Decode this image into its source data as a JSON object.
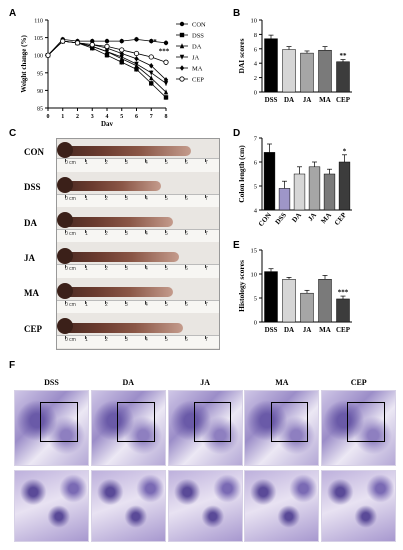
{
  "panels": {
    "A": "A",
    "B": "B",
    "C": "C",
    "D": "D",
    "E": "E",
    "F": "F"
  },
  "chart_data": [
    {
      "id": "A",
      "type": "line",
      "xlabel": "Day",
      "ylabel": "Weight change (%)",
      "ylim": [
        85,
        110
      ],
      "xlim": [
        0,
        8
      ],
      "x": [
        0,
        1,
        2,
        3,
        4,
        5,
        6,
        7,
        8
      ],
      "yticks": [
        85,
        90,
        95,
        100,
        105,
        110
      ],
      "series": [
        {
          "name": "CON",
          "marker": "filled-circle",
          "values": [
            100,
            104.5,
            104,
            104,
            104,
            104,
            104.5,
            104,
            103.5
          ]
        },
        {
          "name": "DSS",
          "marker": "filled-square",
          "values": [
            100,
            104,
            103.5,
            102,
            100,
            98,
            96,
            92,
            88
          ]
        },
        {
          "name": "DA",
          "marker": "filled-triangle",
          "values": [
            100,
            104,
            103.5,
            102.5,
            101,
            99,
            97,
            93.5,
            89.5
          ]
        },
        {
          "name": "JA",
          "marker": "inverted-triangle",
          "values": [
            100,
            104,
            103.5,
            102.5,
            101,
            99.5,
            97.5,
            95,
            92
          ]
        },
        {
          "name": "MA",
          "marker": "diamond",
          "values": [
            100,
            104,
            103.5,
            103,
            102,
            100.5,
            99,
            97,
            93
          ]
        },
        {
          "name": "CEP",
          "marker": "open-circle",
          "values": [
            100,
            104,
            103.5,
            103,
            102.5,
            101.5,
            100.5,
            99.5,
            98
          ]
        }
      ],
      "annotations": [
        "**",
        "***"
      ]
    },
    {
      "id": "B",
      "type": "bar",
      "ylabel": "DAI scores",
      "categories": [
        "DSS",
        "DA",
        "JA",
        "MA",
        "CEP"
      ],
      "values": [
        7.4,
        5.9,
        5.4,
        5.8,
        4.2
      ],
      "errors": [
        0.5,
        0.4,
        0.3,
        0.5,
        0.3
      ],
      "colors": [
        "#000000",
        "#d6d6d6",
        "#a6a6a6",
        "#7a7a7a",
        "#3c3c3c"
      ],
      "ylim": [
        0,
        10
      ],
      "yticks": [
        0,
        2,
        4,
        6,
        8,
        10
      ],
      "annotations": [
        "",
        "",
        "",
        "",
        "**"
      ]
    },
    {
      "id": "D",
      "type": "bar",
      "ylabel": "Colon length (cm)",
      "categories": [
        "CON",
        "DSS",
        "DA",
        "JA",
        "MA",
        "CEP"
      ],
      "values": [
        6.4,
        4.9,
        5.5,
        5.8,
        5.5,
        6.0
      ],
      "errors": [
        0.35,
        0.3,
        0.3,
        0.2,
        0.2,
        0.3
      ],
      "colors": [
        "#000000",
        "#9e96c8",
        "#d6d6d6",
        "#a6a6a6",
        "#7a7a7a",
        "#3c3c3c"
      ],
      "ylim": [
        4,
        7
      ],
      "yticks": [
        4,
        5,
        6,
        7
      ],
      "annotations": [
        "",
        "",
        "",
        "",
        "",
        "*"
      ]
    },
    {
      "id": "E",
      "type": "bar",
      "ylabel": "Histology scores",
      "categories": [
        "DSS",
        "DA",
        "JA",
        "MA",
        "CEP"
      ],
      "values": [
        10.5,
        8.9,
        6.0,
        8.9,
        4.8
      ],
      "errors": [
        0.6,
        0.4,
        0.6,
        0.8,
        0.6
      ],
      "colors": [
        "#000000",
        "#d6d6d6",
        "#a6a6a6",
        "#7a7a7a",
        "#3c3c3c"
      ],
      "ylim": [
        0,
        15
      ],
      "yticks": [
        0,
        5,
        10,
        15
      ],
      "annotations": [
        "",
        "",
        "",
        "",
        "***"
      ]
    }
  ],
  "colon_photos": {
    "rows": [
      {
        "label": "CON",
        "length_cm": 6.4
      },
      {
        "label": "DSS",
        "length_cm": 4.9
      },
      {
        "label": "DA",
        "length_cm": 5.5
      },
      {
        "label": "JA",
        "length_cm": 5.8
      },
      {
        "label": "MA",
        "length_cm": 5.5
      },
      {
        "label": "CEP",
        "length_cm": 6.0
      }
    ],
    "ruler_ticks": [
      "0 cm",
      "1",
      "2",
      "3",
      "4",
      "5",
      "6",
      "7"
    ]
  },
  "histology": {
    "columns": [
      "DSS",
      "DA",
      "JA",
      "MA",
      "CEP"
    ]
  }
}
